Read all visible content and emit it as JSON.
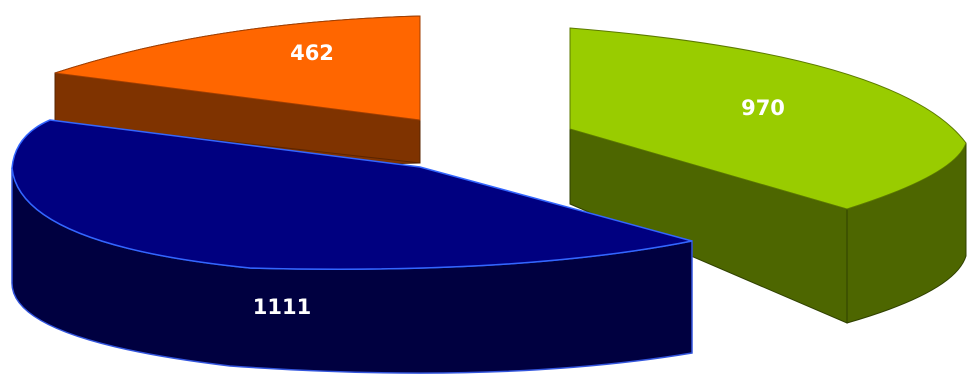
{
  "chart_data": {
    "type": "pie",
    "style": "3d-exploded",
    "title": "",
    "legend": "none",
    "slices": [
      {
        "value": 462,
        "label": "462",
        "color": "#FF6600",
        "side_color": "#7F3300"
      },
      {
        "value": 970,
        "label": "970",
        "color": "#99CC00",
        "side_color": "#4D6600"
      },
      {
        "value": 1111,
        "label": "1111",
        "color": "#000080",
        "side_color": "#000040"
      }
    ]
  }
}
